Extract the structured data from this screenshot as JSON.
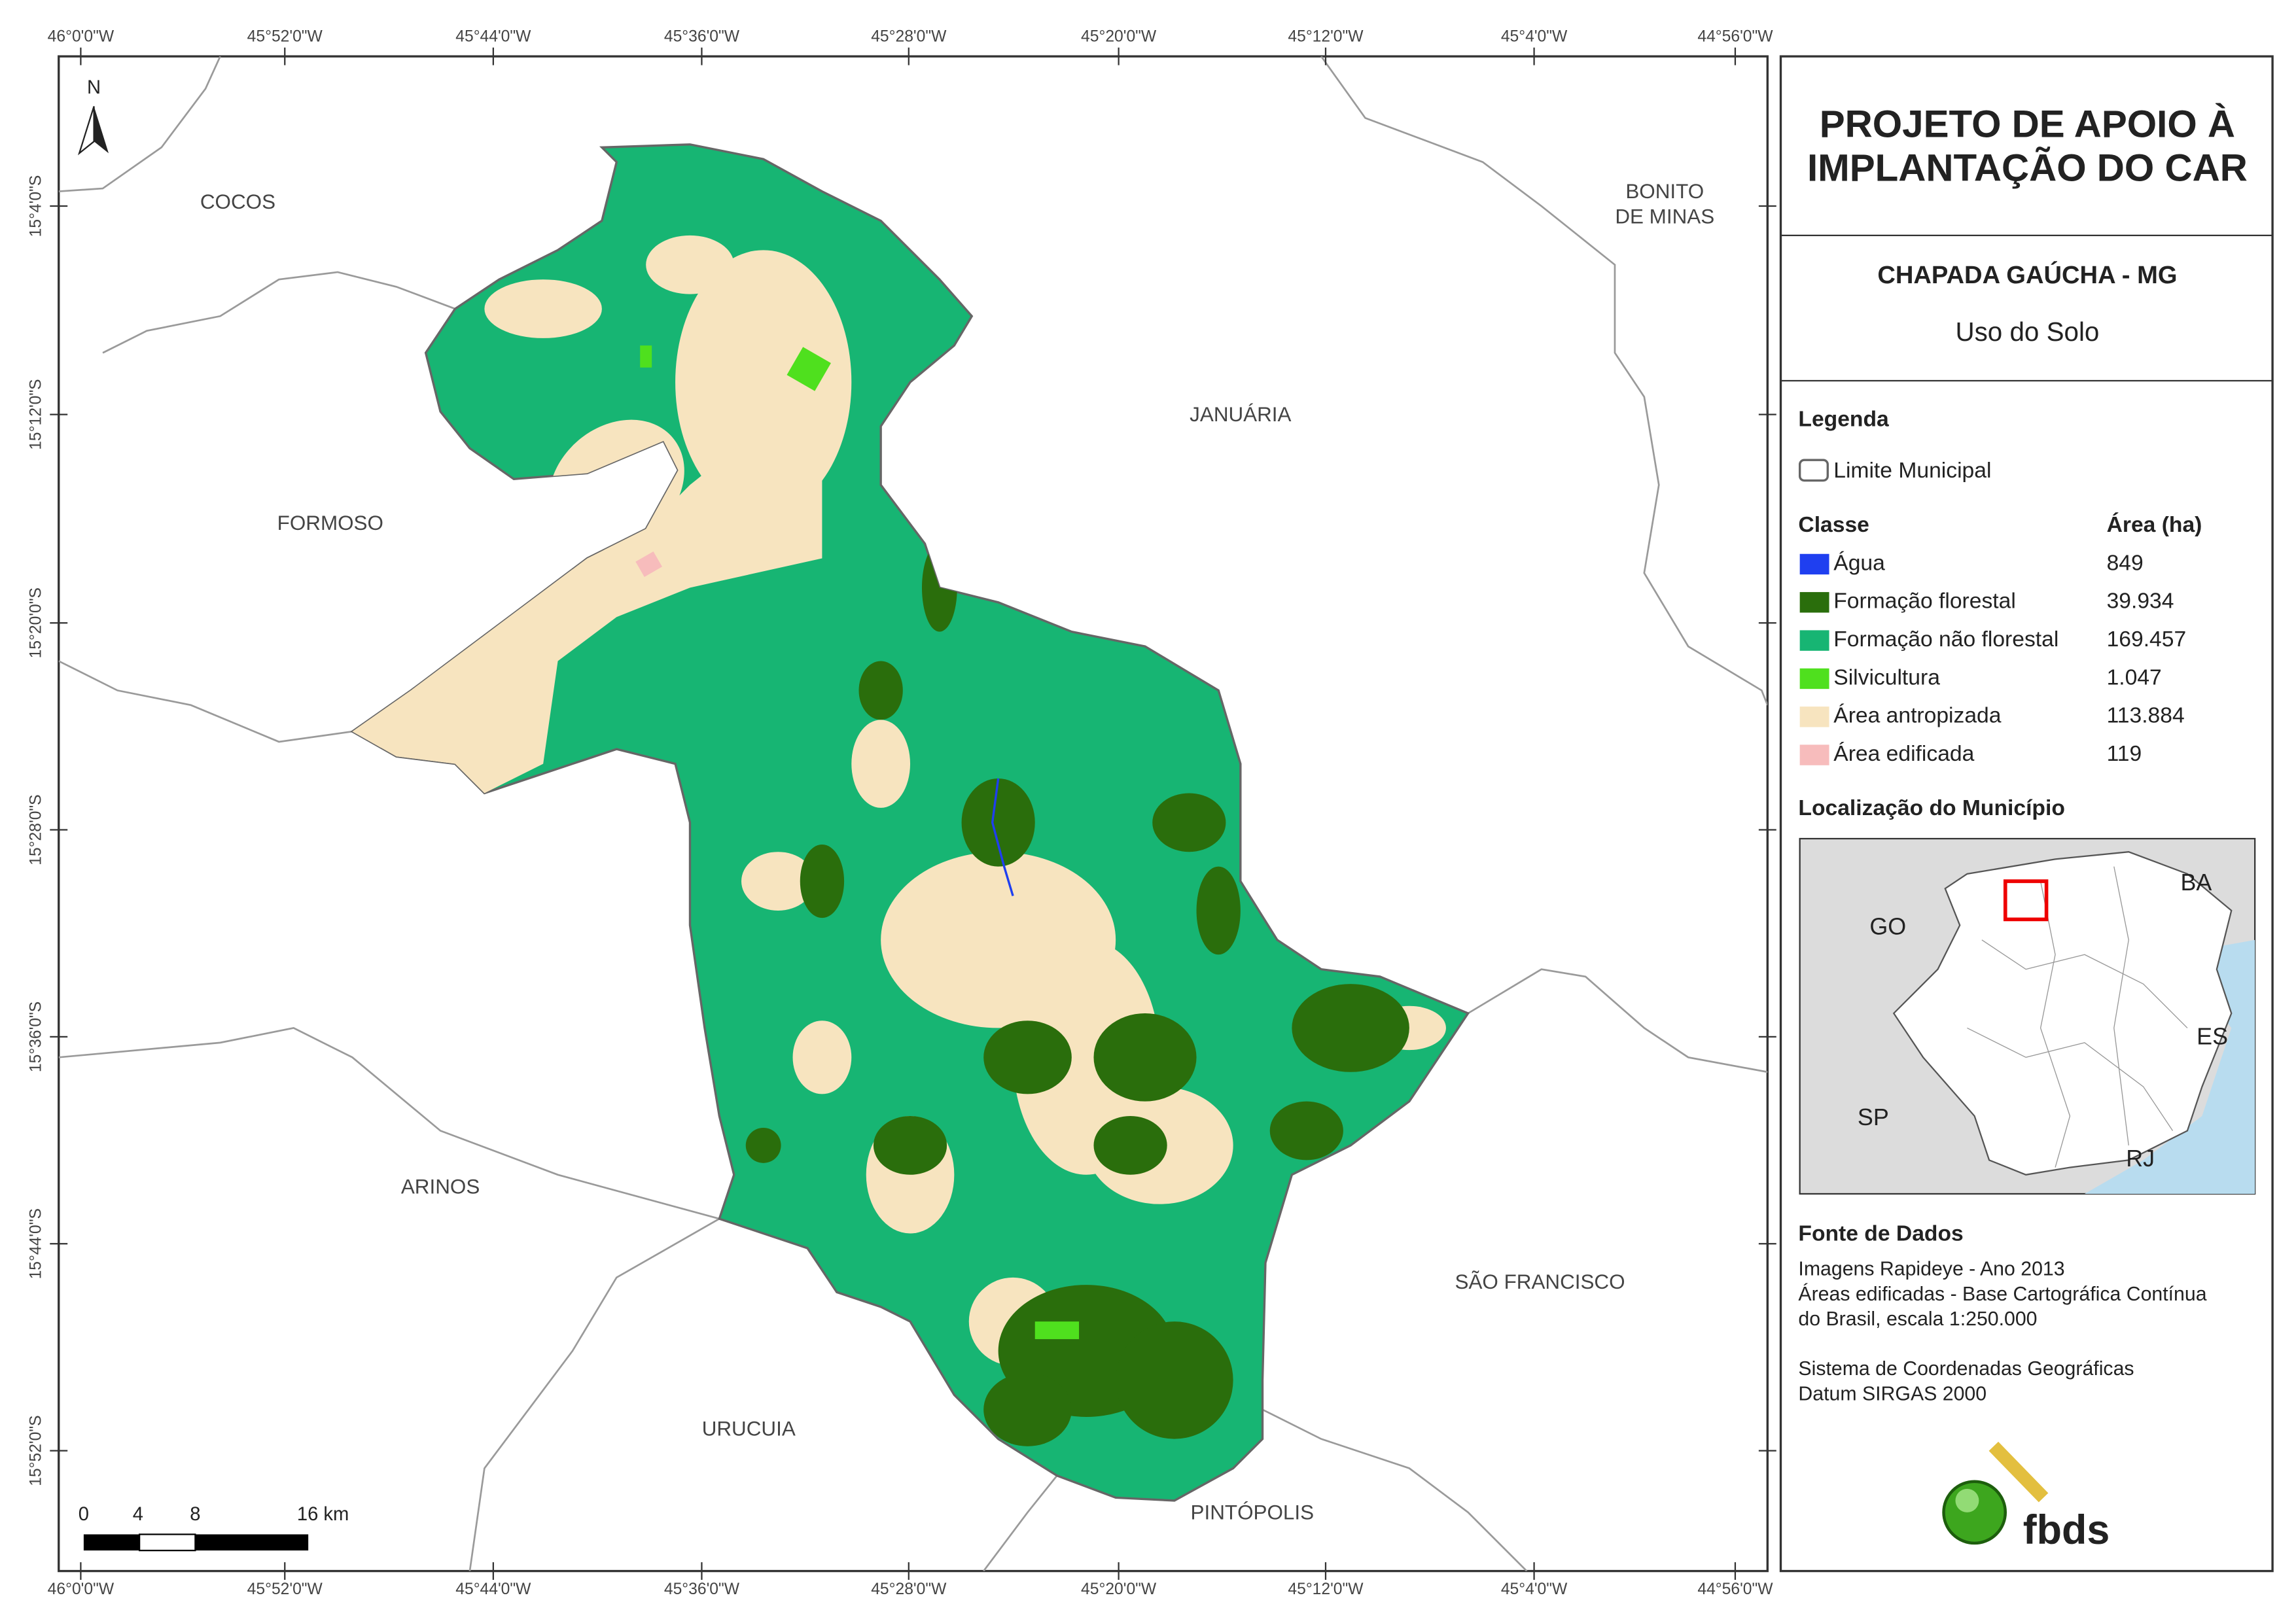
{
  "map": {
    "lon_labels": [
      "46°0'0\"W",
      "45°52'0\"W",
      "45°44'0\"W",
      "45°36'0\"W",
      "45°28'0\"W",
      "45°20'0\"W",
      "45°12'0\"W",
      "45°4'0\"W",
      "44°56'0\"W"
    ],
    "lat_labels": [
      "15°4'0\"S",
      "15°12'0\"S",
      "15°20'0\"S",
      "15°28'0\"S",
      "15°36'0\"S",
      "15°44'0\"S",
      "15°52'0\"S"
    ],
    "municipalities": [
      [
        "COCOS"
      ],
      [
        "BONITO",
        "DE MINAS"
      ],
      [
        "JANUÁRIA"
      ],
      [
        "FORMOSO"
      ],
      [
        "ARINOS"
      ],
      [
        "SÃO FRANCISCO"
      ],
      [
        "URUCUIA"
      ],
      [
        "PINTÓPOLIS"
      ]
    ],
    "north": "N",
    "scale_labels": [
      "0",
      "4",
      "8",
      "16 km"
    ]
  },
  "panel": {
    "title_lines": [
      "PROJETO DE APOIO À",
      "IMPLANTAÇÃO DO CAR"
    ],
    "subtitle": "CHAPADA GAÚCHA - MG",
    "theme": "Uso do Solo",
    "legend": {
      "heading": "Legenda",
      "boundary": "Limite Municipal",
      "class_header": "Classe",
      "area_header": "Área (ha)",
      "classes": [
        {
          "name": "Água",
          "area": "849",
          "color": "#1f3ff0"
        },
        {
          "name": "Formação florestal",
          "area": "39.934",
          "color": "#2a6e0c"
        },
        {
          "name": "Formação não florestal",
          "area": "169.457",
          "color": "#17b573"
        },
        {
          "name": "Silvicultura",
          "area": "1.047",
          "color": "#4fe01e"
        },
        {
          "name": "Área antropizada",
          "area": "113.884",
          "color": "#f7e4bf"
        },
        {
          "name": "Área edificada",
          "area": "119",
          "color": "#f7bcbc"
        }
      ]
    },
    "location": {
      "heading": "Localização do Município",
      "labels": [
        "BA",
        "GO",
        "ES",
        "SP",
        "RJ"
      ]
    },
    "sources": {
      "heading": "Fonte de Dados",
      "lines": [
        "Imagens Rapideye - Ano 2013",
        "Áreas edificadas - Base Cartográfica Contínua",
        "do Brasil, escala 1:250.000",
        "Sistema de Coordenadas Geográficas",
        "Datum SIRGAS 2000"
      ]
    },
    "logo": "fbds"
  }
}
